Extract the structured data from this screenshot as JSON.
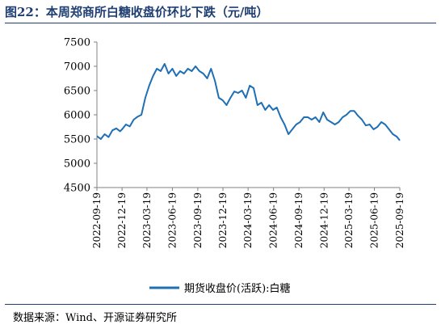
{
  "header": {
    "title": "图22：本周郑商所白糖收盘价环比下跌（元/吨）",
    "source": "数据来源：Wind、开源证券研究所"
  },
  "colors": {
    "series": "#1f6fb5",
    "title": "#1f3f73",
    "axis": "#808080"
  },
  "chart_data": {
    "type": "line",
    "title": "",
    "xlabel": "",
    "ylabel": "",
    "ylim": [
      4500,
      7500
    ],
    "yticks": [
      "4500",
      "5000",
      "5500",
      "6000",
      "6500",
      "7000",
      "7500"
    ],
    "xticks": [
      "2022-09-19",
      "2022-12-19",
      "2023-03-19",
      "2023-06-19",
      "2023-09-19",
      "2023-12-19",
      "2024-03-19",
      "2024-06-19",
      "2024-09-19",
      "2024-12-19",
      "2025-03-19",
      "2025-06-19",
      "2025-09-19"
    ],
    "grid": false,
    "legend": "bottom",
    "series": [
      {
        "name": "期货收盘价(活跃):白糖",
        "points": [
          [
            "2022-09-19",
            5560
          ],
          [
            "2022-10-03",
            5500
          ],
          [
            "2022-10-17",
            5600
          ],
          [
            "2022-10-31",
            5540
          ],
          [
            "2022-11-14",
            5680
          ],
          [
            "2022-11-28",
            5720
          ],
          [
            "2022-12-12",
            5660
          ],
          [
            "2022-12-19",
            5700
          ],
          [
            "2023-01-02",
            5800
          ],
          [
            "2023-01-16",
            5760
          ],
          [
            "2023-01-30",
            5900
          ],
          [
            "2023-02-13",
            5960
          ],
          [
            "2023-02-27",
            6000
          ],
          [
            "2023-03-13",
            6350
          ],
          [
            "2023-03-27",
            6600
          ],
          [
            "2023-04-10",
            6800
          ],
          [
            "2023-04-24",
            6950
          ],
          [
            "2023-05-08",
            6900
          ],
          [
            "2023-05-22",
            7050
          ],
          [
            "2023-06-05",
            6850
          ],
          [
            "2023-06-19",
            6950
          ],
          [
            "2023-07-03",
            6800
          ],
          [
            "2023-07-17",
            6900
          ],
          [
            "2023-07-31",
            6850
          ],
          [
            "2023-08-14",
            6950
          ],
          [
            "2023-08-28",
            6900
          ],
          [
            "2023-09-11",
            7000
          ],
          [
            "2023-09-25",
            6900
          ],
          [
            "2023-10-09",
            6850
          ],
          [
            "2023-10-23",
            6750
          ],
          [
            "2023-11-06",
            6950
          ],
          [
            "2023-11-20",
            6700
          ],
          [
            "2023-12-04",
            6350
          ],
          [
            "2023-12-18",
            6300
          ],
          [
            "2024-01-01",
            6200
          ],
          [
            "2024-01-15",
            6350
          ],
          [
            "2024-01-29",
            6480
          ],
          [
            "2024-02-12",
            6450
          ],
          [
            "2024-02-26",
            6500
          ],
          [
            "2024-03-11",
            6350
          ],
          [
            "2024-03-25",
            6600
          ],
          [
            "2024-04-08",
            6550
          ],
          [
            "2024-04-22",
            6200
          ],
          [
            "2024-05-06",
            6250
          ],
          [
            "2024-05-20",
            6100
          ],
          [
            "2024-06-03",
            6200
          ],
          [
            "2024-06-17",
            6100
          ],
          [
            "2024-07-01",
            6150
          ],
          [
            "2024-07-15",
            5950
          ],
          [
            "2024-07-29",
            5800
          ],
          [
            "2024-08-12",
            5600
          ],
          [
            "2024-08-26",
            5700
          ],
          [
            "2024-09-09",
            5800
          ],
          [
            "2024-09-23",
            5850
          ],
          [
            "2024-10-07",
            5950
          ],
          [
            "2024-10-21",
            5950
          ],
          [
            "2024-11-04",
            5900
          ],
          [
            "2024-11-18",
            5950
          ],
          [
            "2024-12-02",
            5850
          ],
          [
            "2024-12-16",
            6050
          ],
          [
            "2024-12-30",
            5900
          ],
          [
            "2025-01-13",
            5850
          ],
          [
            "2025-01-27",
            5800
          ],
          [
            "2025-02-10",
            5850
          ],
          [
            "2025-02-24",
            5950
          ],
          [
            "2025-03-10",
            6000
          ],
          [
            "2025-03-24",
            6080
          ],
          [
            "2025-04-07",
            6080
          ],
          [
            "2025-04-21",
            5980
          ],
          [
            "2025-05-05",
            5900
          ],
          [
            "2025-05-19",
            5780
          ],
          [
            "2025-06-02",
            5800
          ],
          [
            "2025-06-16",
            5700
          ],
          [
            "2025-06-30",
            5750
          ],
          [
            "2025-07-14",
            5850
          ],
          [
            "2025-07-28",
            5800
          ],
          [
            "2025-08-11",
            5700
          ],
          [
            "2025-08-25",
            5600
          ],
          [
            "2025-09-08",
            5550
          ],
          [
            "2025-09-19",
            5470
          ]
        ]
      }
    ]
  }
}
